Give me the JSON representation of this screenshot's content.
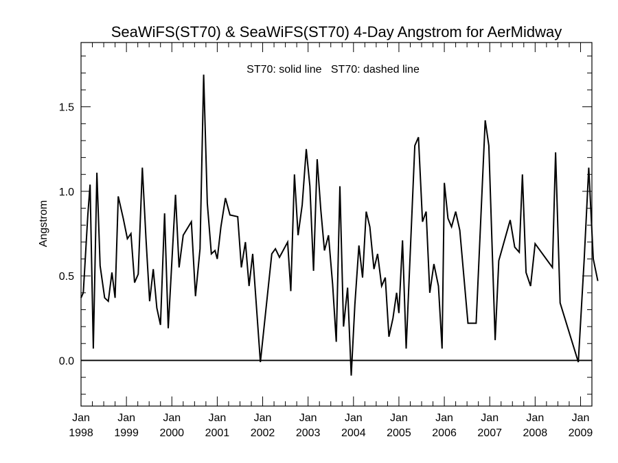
{
  "chart_data": {
    "type": "line",
    "title": "SeaWiFS(ST70) & SeaWiFS(ST70) 4-Day Angstrom for AerMidway",
    "ylabel": "Angstrom",
    "xlabel": "",
    "annotation": "ST70: solid line   ST70: dashed line",
    "xlim": [
      1998.0,
      2009.25
    ],
    "ylim": [
      -0.27,
      1.88
    ],
    "yticks": [
      {
        "value": 0.0,
        "label": "0.0"
      },
      {
        "value": 0.5,
        "label": "0.5"
      },
      {
        "value": 1.0,
        "label": "1.0"
      },
      {
        "value": 1.5,
        "label": "1.5"
      }
    ],
    "xticks": [
      {
        "value": 1998,
        "month": "Jan",
        "year": "1998"
      },
      {
        "value": 1999,
        "month": "Jan",
        "year": "1999"
      },
      {
        "value": 2000,
        "month": "Jan",
        "year": "2000"
      },
      {
        "value": 2001,
        "month": "Jan",
        "year": "2001"
      },
      {
        "value": 2002,
        "month": "Jan",
        "year": "2002"
      },
      {
        "value": 2003,
        "month": "Jan",
        "year": "2003"
      },
      {
        "value": 2004,
        "month": "Jan",
        "year": "2004"
      },
      {
        "value": 2005,
        "month": "Jan",
        "year": "2005"
      },
      {
        "value": 2006,
        "month": "Jan",
        "year": "2006"
      },
      {
        "value": 2007,
        "month": "Jan",
        "year": "2007"
      },
      {
        "value": 2008,
        "month": "Jan",
        "year": "2008"
      },
      {
        "value": 2009,
        "month": "Jan",
        "year": "2009"
      }
    ],
    "reference_line": {
      "y": 0.0
    },
    "grid": false,
    "series": [
      {
        "style": "solid",
        "color": "#000000",
        "points": [
          [
            1998.0,
            0.37
          ],
          [
            1998.05,
            0.4
          ],
          [
            1998.15,
            0.86
          ],
          [
            1998.2,
            1.04
          ],
          [
            1998.27,
            0.07
          ],
          [
            1998.35,
            1.11
          ],
          [
            1998.42,
            0.56
          ],
          [
            1998.52,
            0.37
          ],
          [
            1998.6,
            0.35
          ],
          [
            1998.68,
            0.52
          ],
          [
            1998.75,
            0.37
          ],
          [
            1998.82,
            0.97
          ],
          [
            1998.93,
            0.84
          ],
          [
            1999.02,
            0.72
          ],
          [
            1999.1,
            0.75
          ],
          [
            1999.18,
            0.46
          ],
          [
            1999.26,
            0.51
          ],
          [
            1999.35,
            1.14
          ],
          [
            1999.43,
            0.72
          ],
          [
            1999.51,
            0.35
          ],
          [
            1999.59,
            0.54
          ],
          [
            1999.67,
            0.31
          ],
          [
            1999.75,
            0.21
          ],
          [
            1999.84,
            0.87
          ],
          [
            1999.92,
            0.19
          ],
          [
            2000.08,
            0.98
          ],
          [
            2000.16,
            0.55
          ],
          [
            2000.25,
            0.74
          ],
          [
            2000.43,
            0.82
          ],
          [
            2000.52,
            0.38
          ],
          [
            2000.62,
            0.66
          ],
          [
            2000.7,
            1.69
          ],
          [
            2000.78,
            0.93
          ],
          [
            2000.87,
            0.63
          ],
          [
            2000.95,
            0.65
          ],
          [
            2001.0,
            0.6
          ],
          [
            2001.08,
            0.79
          ],
          [
            2001.18,
            0.96
          ],
          [
            2001.28,
            0.86
          ],
          [
            2001.45,
            0.85
          ],
          [
            2001.53,
            0.55
          ],
          [
            2001.62,
            0.7
          ],
          [
            2001.7,
            0.44
          ],
          [
            2001.78,
            0.63
          ],
          [
            2001.95,
            -0.01
          ],
          [
            2002.2,
            0.63
          ],
          [
            2002.28,
            0.66
          ],
          [
            2002.37,
            0.61
          ],
          [
            2002.55,
            0.7
          ],
          [
            2002.62,
            0.41
          ],
          [
            2002.7,
            1.1
          ],
          [
            2002.78,
            0.74
          ],
          [
            2002.87,
            0.92
          ],
          [
            2002.96,
            1.25
          ],
          [
            2003.04,
            1.03
          ],
          [
            2003.12,
            0.53
          ],
          [
            2003.2,
            1.19
          ],
          [
            2003.28,
            0.89
          ],
          [
            2003.36,
            0.65
          ],
          [
            2003.45,
            0.74
          ],
          [
            2003.54,
            0.45
          ],
          [
            2003.62,
            0.11
          ],
          [
            2003.7,
            1.03
          ],
          [
            2003.78,
            0.2
          ],
          [
            2003.87,
            0.43
          ],
          [
            2003.95,
            -0.09
          ],
          [
            2004.03,
            0.33
          ],
          [
            2004.12,
            0.68
          ],
          [
            2004.2,
            0.49
          ],
          [
            2004.28,
            0.88
          ],
          [
            2004.36,
            0.79
          ],
          [
            2004.45,
            0.54
          ],
          [
            2004.53,
            0.63
          ],
          [
            2004.62,
            0.44
          ],
          [
            2004.7,
            0.49
          ],
          [
            2004.78,
            0.14
          ],
          [
            2004.87,
            0.25
          ],
          [
            2004.95,
            0.4
          ],
          [
            2005.0,
            0.28
          ],
          [
            2005.08,
            0.71
          ],
          [
            2005.16,
            0.07
          ],
          [
            2005.35,
            1.27
          ],
          [
            2005.43,
            1.32
          ],
          [
            2005.52,
            0.82
          ],
          [
            2005.6,
            0.88
          ],
          [
            2005.68,
            0.4
          ],
          [
            2005.77,
            0.57
          ],
          [
            2005.87,
            0.44
          ],
          [
            2005.95,
            0.07
          ],
          [
            2006.0,
            1.05
          ],
          [
            2006.08,
            0.84
          ],
          [
            2006.16,
            0.79
          ],
          [
            2006.25,
            0.88
          ],
          [
            2006.34,
            0.77
          ],
          [
            2006.52,
            0.22
          ],
          [
            2006.7,
            0.22
          ],
          [
            2006.9,
            1.42
          ],
          [
            2006.98,
            1.27
          ],
          [
            2007.12,
            0.12
          ],
          [
            2007.2,
            0.59
          ],
          [
            2007.45,
            0.83
          ],
          [
            2007.55,
            0.67
          ],
          [
            2007.65,
            0.64
          ],
          [
            2007.72,
            1.1
          ],
          [
            2007.8,
            0.52
          ],
          [
            2007.9,
            0.44
          ],
          [
            2008.0,
            0.69
          ],
          [
            2008.38,
            0.55
          ],
          [
            2008.45,
            1.23
          ],
          [
            2008.55,
            0.34
          ],
          [
            2008.95,
            -0.01
          ],
          [
            2009.08,
            0.6
          ],
          [
            2009.18,
            1.14
          ],
          [
            2009.28,
            0.6
          ],
          [
            2009.38,
            0.47
          ]
        ]
      }
    ]
  }
}
